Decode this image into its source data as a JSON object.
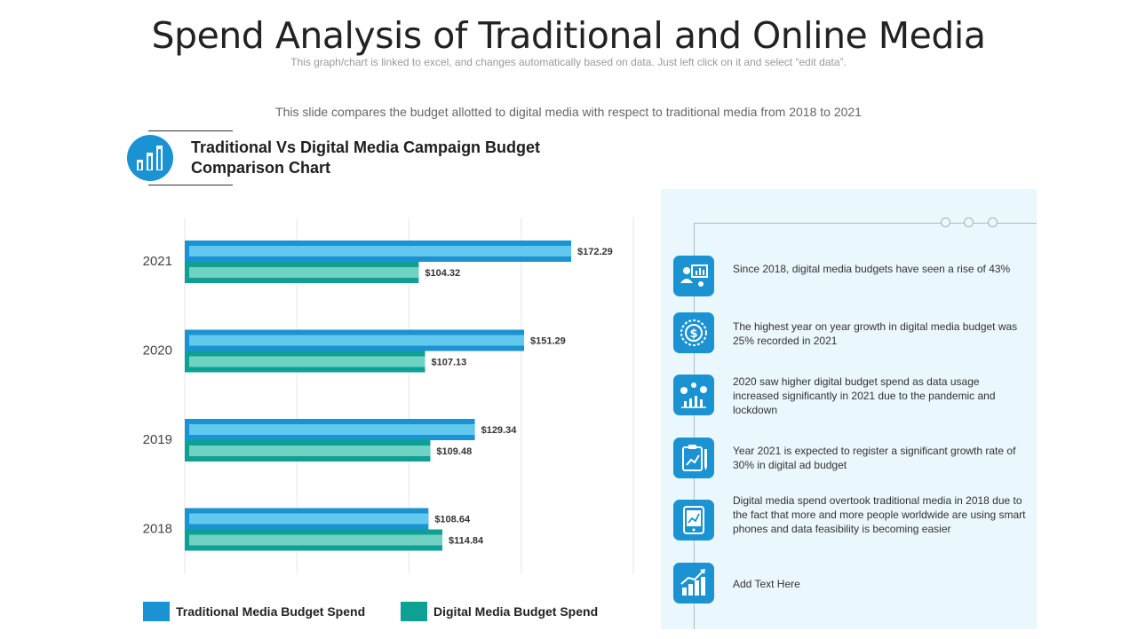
{
  "header": {
    "title": "Spend Analysis of Traditional and Online Media",
    "note": "This graph/chart is linked to excel, and changes automatically based on data. Just left click on it and select “edit data”.",
    "subtitle": "This slide compares the budget allotted to digital media with respect to traditional media from 2018 to 2021"
  },
  "chart_heading": "Traditional Vs Digital Media Campaign Budget Comparison Chart",
  "colors": {
    "traditional": "#1b93d2",
    "traditional_inner": "#62c8ee",
    "digital": "#0fa093",
    "digital_inner": "#6fd2c2",
    "panel_bg": "#eaf7fc"
  },
  "chart_data": {
    "type": "bar",
    "orientation": "horizontal",
    "categories": [
      "2021",
      "2020",
      "2019",
      "2018"
    ],
    "series": [
      {
        "name": "Traditional Media Budget Spend",
        "values": [
          172.29,
          151.29,
          129.34,
          108.64
        ],
        "labels": [
          "$172.29",
          "$151.29",
          "$129.34",
          "$108.64"
        ]
      },
      {
        "name": "Digital Media Budget Spend",
        "values": [
          104.32,
          107.13,
          109.48,
          114.84
        ],
        "labels": [
          "$104.32",
          "$107.13",
          "$109.48",
          "$114.84"
        ]
      }
    ],
    "xlim": [
      0,
      200
    ],
    "grid": true,
    "legend": "bottom"
  },
  "insights": [
    {
      "icon": "presentation-icon",
      "text": "Since 2018, digital media budgets have seen a rise of 43%"
    },
    {
      "icon": "coin-icon",
      "text": "The highest year on year growth in digital media budget was 25% recorded in 2021"
    },
    {
      "icon": "growth-chart-icon",
      "text": "2020 saw higher digital budget spend as data usage increased significantly in 2021 due to the pandemic and lockdown"
    },
    {
      "icon": "clipboard-chart-icon",
      "text": "Year 2021 is expected to register a significant growth rate of 30% in digital ad budget"
    },
    {
      "icon": "tablet-chart-icon",
      "text": "Digital media spend overtook traditional media in 2018 due to the fact that more and more people worldwide are using smart phones and data feasibility is becoming easier"
    },
    {
      "icon": "trend-bars-icon",
      "text": "Add Text Here"
    }
  ]
}
